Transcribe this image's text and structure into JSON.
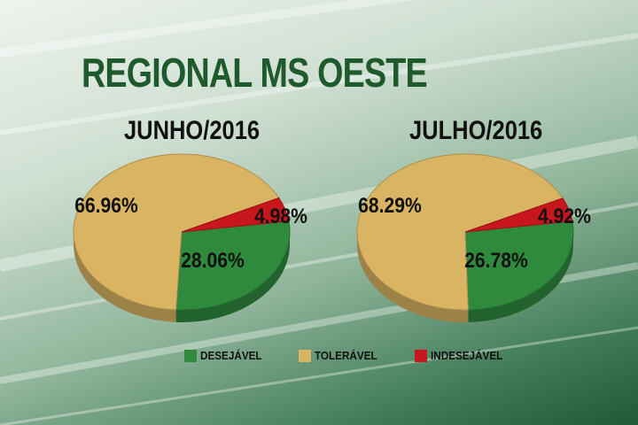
{
  "title": "REGIONAL MS OESTE",
  "colors": {
    "Desejável": "#2f8a3e",
    "Tolerável": "#d9b462",
    "Indesejável": "#c8161d"
  },
  "legend": [
    {
      "label": "DESEJÁVEL",
      "key": "Desejável"
    },
    {
      "label": "TOLERÁVEL",
      "key": "Tolerável"
    },
    {
      "label": "INDESEJÁVEL",
      "key": "Indesejável"
    }
  ],
  "chart_data": [
    {
      "type": "pie",
      "title": "JUNHO/2016",
      "labels": [
        "Desejável",
        "Tolerável",
        "Indesejável"
      ],
      "values": [
        28.06,
        66.96,
        4.98
      ],
      "value_labels": [
        "28.06%",
        "66.96%",
        "4.98%"
      ]
    },
    {
      "type": "pie",
      "title": "JULHO/2016",
      "labels": [
        "Desejável",
        "Tolerável",
        "Indesejável"
      ],
      "values": [
        26.78,
        68.29,
        4.92
      ],
      "value_labels": [
        "26.78%",
        "68.29%",
        "4.92%"
      ]
    }
  ]
}
